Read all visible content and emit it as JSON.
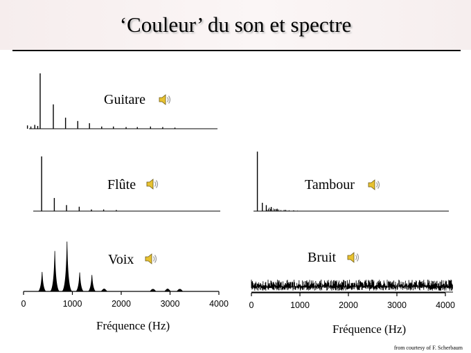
{
  "slide": {
    "title": "‘Couleur’ du son et spectre",
    "credit": "from courtesy of F. Scherbaum"
  },
  "colors": {
    "background": "#ffffff",
    "title_band": "#f6eded",
    "line": "#000000",
    "title_shadow": "#b9b9b9"
  },
  "icons": {
    "sound": "speaker-icon"
  },
  "chart_data": [
    {
      "type": "line",
      "name": "Guitare",
      "panel": "left-top",
      "xlim": [
        0,
        4000
      ],
      "peaks": [
        {
          "x": 80,
          "y": 0.06
        },
        {
          "x": 150,
          "y": 0.04
        },
        {
          "x": 230,
          "y": 0.07
        },
        {
          "x": 290,
          "y": 0.05
        },
        {
          "x": 340,
          "y": 1.0
        },
        {
          "x": 610,
          "y": 0.44
        },
        {
          "x": 860,
          "y": 0.2
        },
        {
          "x": 1110,
          "y": 0.14
        },
        {
          "x": 1350,
          "y": 0.1
        },
        {
          "x": 1600,
          "y": 0.04
        },
        {
          "x": 1840,
          "y": 0.04
        },
        {
          "x": 2100,
          "y": 0.03
        },
        {
          "x": 2330,
          "y": 0.03
        },
        {
          "x": 2600,
          "y": 0.04
        },
        {
          "x": 2850,
          "y": 0.03
        },
        {
          "x": 3100,
          "y": 0.02
        }
      ]
    },
    {
      "type": "line",
      "name": "Flûte",
      "panel": "left-middle",
      "xlim": [
        0,
        4000
      ],
      "peaks": [
        {
          "x": 370,
          "y": 1.0
        },
        {
          "x": 630,
          "y": 0.24
        },
        {
          "x": 880,
          "y": 0.11
        },
        {
          "x": 1140,
          "y": 0.08
        },
        {
          "x": 1390,
          "y": 0.03
        },
        {
          "x": 1640,
          "y": 0.03
        },
        {
          "x": 1900,
          "y": 0.02
        }
      ]
    },
    {
      "type": "line",
      "name": "Voix",
      "panel": "left-bottom",
      "xlim": [
        0,
        4000
      ],
      "xticks": [
        0,
        1000,
        2000,
        3000,
        4000
      ],
      "xlabel": "Fréquence (Hz)",
      "peaks": [
        {
          "x": 380,
          "y": 0.39
        },
        {
          "x": 640,
          "y": 0.81
        },
        {
          "x": 890,
          "y": 1.0
        },
        {
          "x": 1150,
          "y": 0.38
        },
        {
          "x": 1400,
          "y": 0.33
        },
        {
          "x": 1650,
          "y": 0.05
        },
        {
          "x": 2650,
          "y": 0.04
        },
        {
          "x": 2950,
          "y": 0.05
        },
        {
          "x": 3200,
          "y": 0.04
        }
      ]
    },
    {
      "type": "line",
      "name": "Tambour",
      "panel": "right-top",
      "xlim": [
        0,
        4000
      ],
      "peaks": [
        {
          "x": 120,
          "y": 1.0
        },
        {
          "x": 220,
          "y": 0.14
        },
        {
          "x": 300,
          "y": 0.1
        },
        {
          "x": 400,
          "y": 0.07
        },
        {
          "x": 520,
          "y": 0.04
        }
      ]
    },
    {
      "type": "line",
      "name": "Bruit",
      "panel": "right-bottom",
      "xlim": [
        0,
        4000
      ],
      "xticks": [
        0,
        1000,
        2000,
        3000,
        4000
      ],
      "xlabel": "Fréquence (Hz)",
      "noise_level": 0.6
    }
  ]
}
